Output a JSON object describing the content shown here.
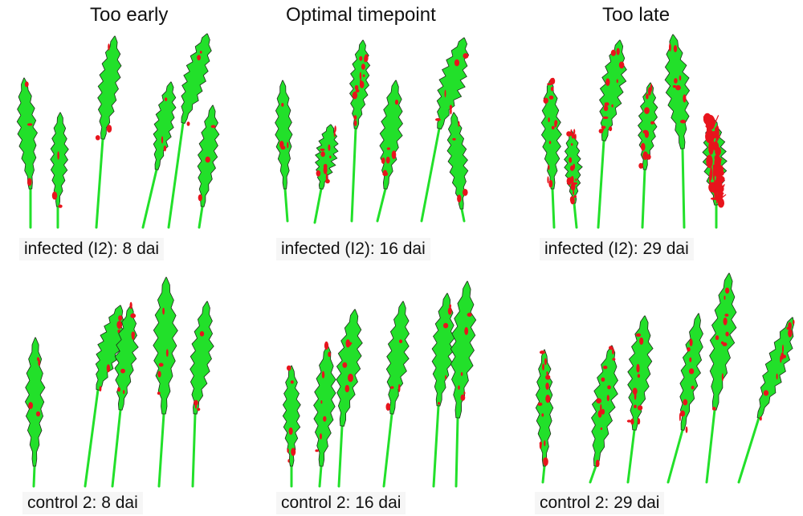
{
  "columns": [
    {
      "title": "Too early"
    },
    {
      "title": "Optimal timepoint"
    },
    {
      "title": "Too late"
    }
  ],
  "rows": [
    {
      "labels": [
        "infected (I2): 8 dai",
        "infected (I2): 16 dai",
        "infected (I2): 29 dai"
      ]
    },
    {
      "labels": [
        "control 2: 8 dai",
        "control 2: 16 dai",
        "control 2: 29 dai"
      ]
    }
  ],
  "colors": {
    "healthy": "#22e02a",
    "infected": "#e8141c",
    "outline": "#1f2a1a",
    "label_band": "#f6f6f6"
  }
}
